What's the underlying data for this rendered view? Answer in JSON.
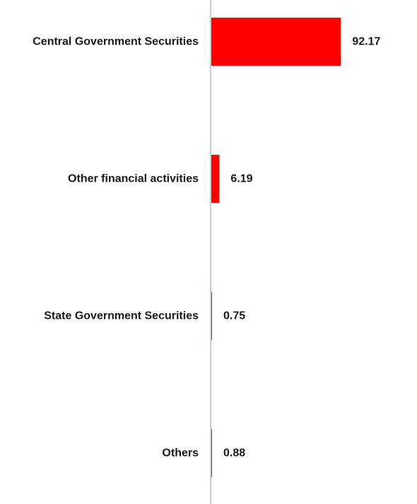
{
  "chart_data": {
    "type": "bar",
    "orientation": "horizontal",
    "categories": [
      "Central Government Securities",
      "Other financial activities",
      "State Government Securities",
      "Others"
    ],
    "values": [
      92.17,
      6.19,
      0.75,
      0.88
    ],
    "value_labels": [
      "92.17",
      "6.19",
      "0.75",
      "0.88"
    ],
    "title": "",
    "xlabel": "",
    "ylabel": "",
    "xlim": [
      0,
      100
    ],
    "grid": false,
    "legend": "none",
    "colors": {
      "bar": "#ff0000",
      "axis": "#cccccc",
      "text": "#1a1a1a"
    }
  }
}
